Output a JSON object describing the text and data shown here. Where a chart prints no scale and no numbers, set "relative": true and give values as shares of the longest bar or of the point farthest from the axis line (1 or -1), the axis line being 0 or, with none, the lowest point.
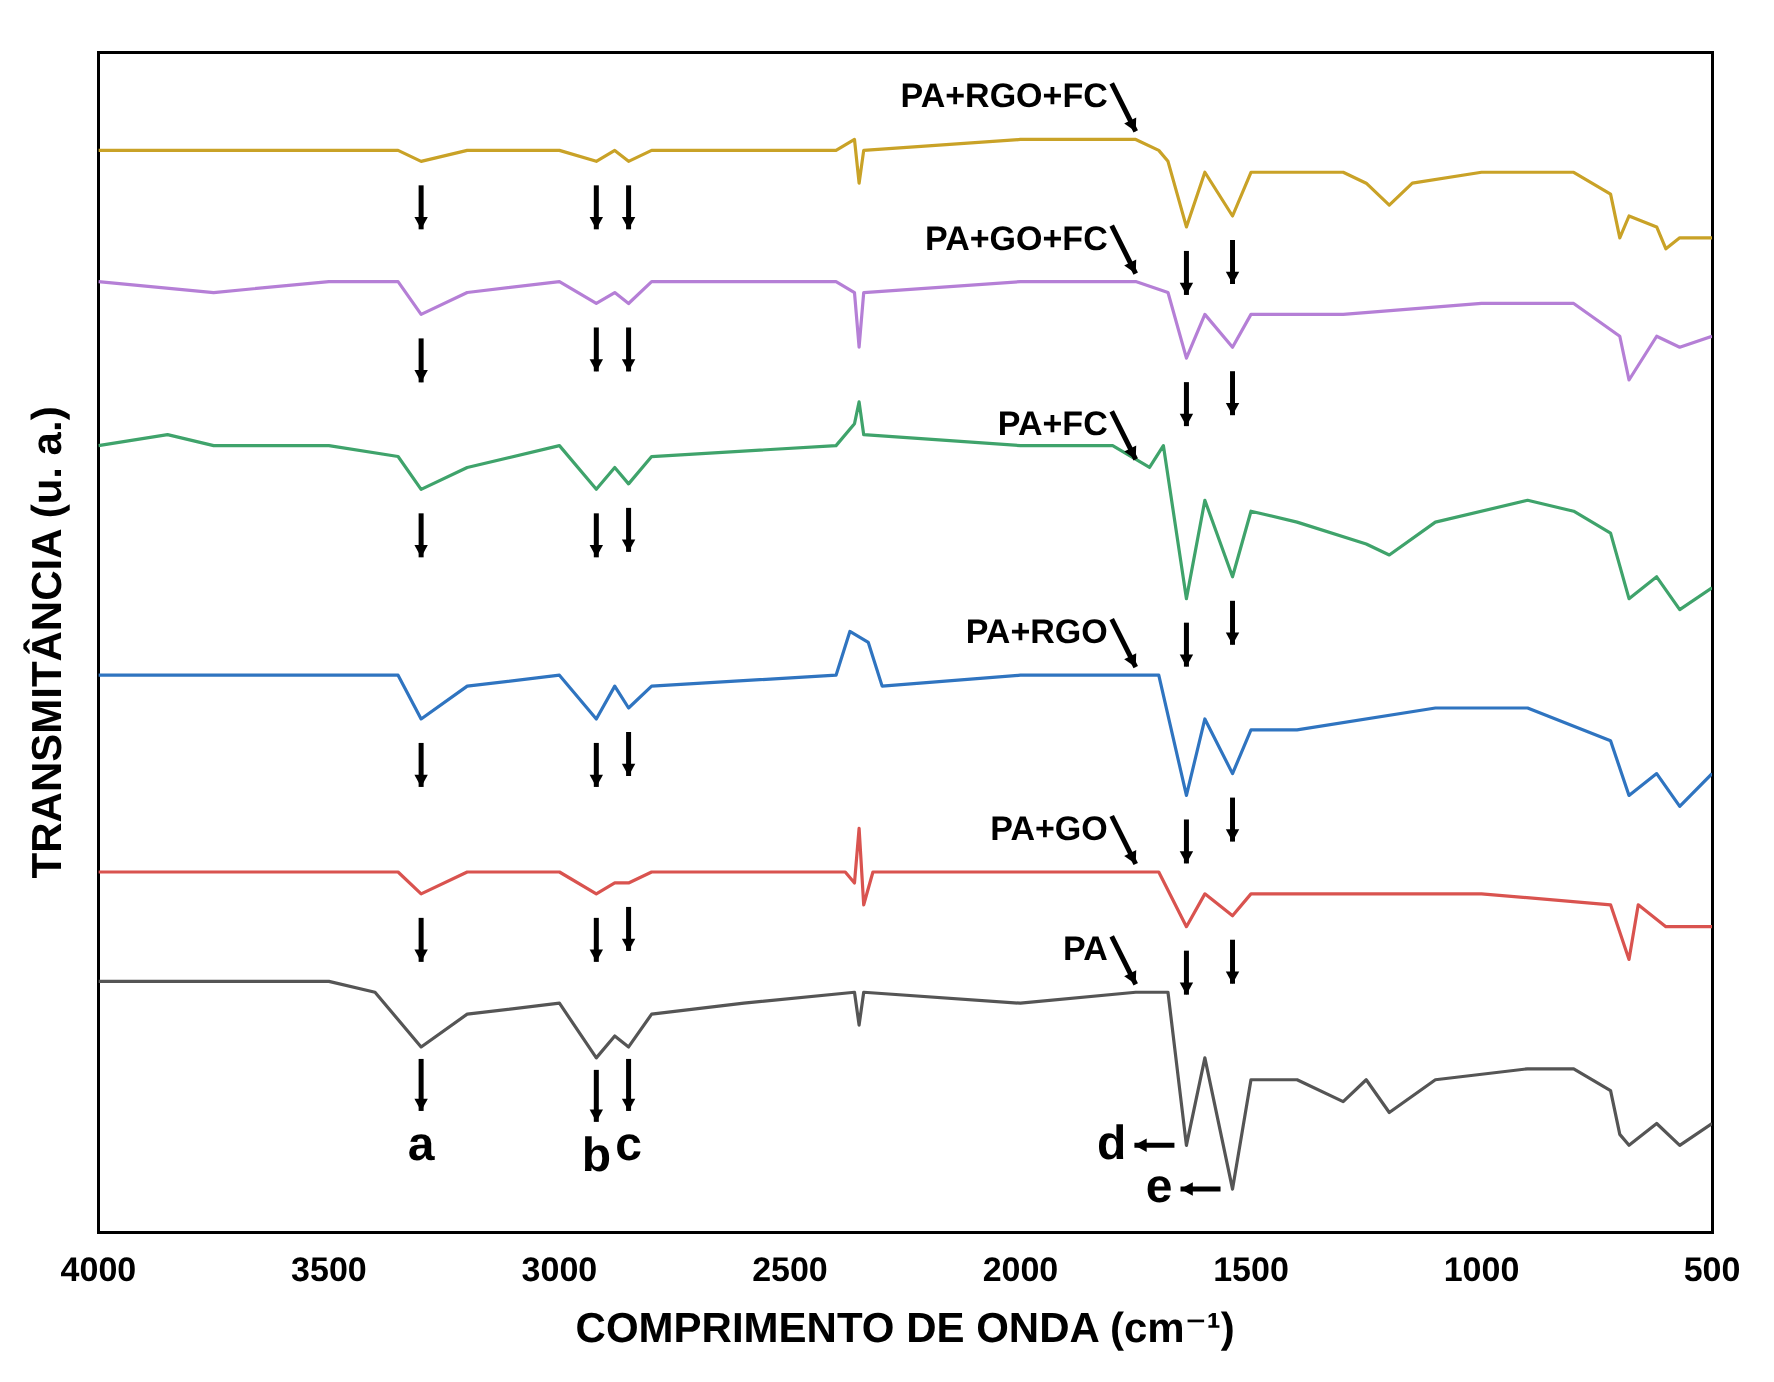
{
  "chart_data": {
    "type": "line",
    "relative": true,
    "xlabel": "COMPRIMENTO DE ONDA (cm⁻¹)",
    "ylabel": "TRANSMITÂNCIA (u. a.)",
    "xlim": [
      4000,
      500
    ],
    "xticks": [
      4000,
      3500,
      3000,
      2500,
      2000,
      1500,
      1000,
      500
    ],
    "legend": false,
    "grid": false,
    "marker": "none",
    "line_style": "solid",
    "series": [
      {
        "name": "PA+RGO+FC",
        "color": "#c9a227",
        "x": [
          4000,
          3750,
          3500,
          3350,
          3300,
          3200,
          3000,
          2920,
          2880,
          2850,
          2800,
          2400,
          2360,
          2350,
          2340,
          2000,
          1750,
          1700,
          1680,
          1640,
          1600,
          1540,
          1500,
          1400,
          1300,
          1250,
          1200,
          1150,
          1000,
          800,
          720,
          700,
          680,
          620,
          600,
          570,
          500
        ],
        "values": [
          0.99,
          0.99,
          0.99,
          0.99,
          0.98,
          0.99,
          0.99,
          0.98,
          0.99,
          0.98,
          0.99,
          0.99,
          1.0,
          0.96,
          0.99,
          1.0,
          1.0,
          0.99,
          0.98,
          0.92,
          0.97,
          0.93,
          0.97,
          0.97,
          0.97,
          0.96,
          0.94,
          0.96,
          0.97,
          0.97,
          0.95,
          0.91,
          0.93,
          0.92,
          0.9,
          0.91,
          0.91
        ]
      },
      {
        "name": "PA+GO+FC",
        "color": "#b57fd6",
        "x": [
          4000,
          3750,
          3500,
          3350,
          3300,
          3200,
          3000,
          2920,
          2880,
          2850,
          2800,
          2400,
          2360,
          2350,
          2340,
          2000,
          1750,
          1680,
          1640,
          1600,
          1540,
          1500,
          1300,
          1000,
          800,
          700,
          680,
          620,
          570,
          500
        ],
        "values": [
          0.87,
          0.86,
          0.87,
          0.87,
          0.84,
          0.86,
          0.87,
          0.85,
          0.86,
          0.85,
          0.87,
          0.87,
          0.86,
          0.81,
          0.86,
          0.87,
          0.87,
          0.86,
          0.8,
          0.84,
          0.81,
          0.84,
          0.84,
          0.85,
          0.85,
          0.82,
          0.78,
          0.82,
          0.81,
          0.82
        ]
      },
      {
        "name": "PA+FC",
        "color": "#3fa36b",
        "x": [
          4000,
          3850,
          3750,
          3500,
          3350,
          3300,
          3200,
          3000,
          2920,
          2880,
          2850,
          2800,
          2400,
          2360,
          2350,
          2340,
          2000,
          1800,
          1720,
          1690,
          1640,
          1600,
          1540,
          1500,
          1400,
          1250,
          1200,
          1100,
          900,
          800,
          720,
          680,
          620,
          570,
          500
        ],
        "values": [
          0.72,
          0.73,
          0.72,
          0.72,
          0.71,
          0.68,
          0.7,
          0.72,
          0.68,
          0.7,
          0.685,
          0.71,
          0.72,
          0.74,
          0.76,
          0.73,
          0.72,
          0.72,
          0.7,
          0.72,
          0.58,
          0.67,
          0.6,
          0.66,
          0.65,
          0.63,
          0.62,
          0.65,
          0.67,
          0.66,
          0.64,
          0.58,
          0.6,
          0.57,
          0.59
        ]
      },
      {
        "name": "PA+RGO",
        "color": "#2f74c0",
        "x": [
          4000,
          3750,
          3500,
          3350,
          3300,
          3200,
          3000,
          2920,
          2880,
          2850,
          2800,
          2400,
          2370,
          2330,
          2300,
          2000,
          1700,
          1640,
          1600,
          1540,
          1500,
          1400,
          1100,
          900,
          720,
          680,
          620,
          570,
          500
        ],
        "values": [
          0.51,
          0.51,
          0.51,
          0.51,
          0.47,
          0.5,
          0.51,
          0.47,
          0.5,
          0.48,
          0.5,
          0.51,
          0.55,
          0.54,
          0.5,
          0.51,
          0.51,
          0.4,
          0.47,
          0.42,
          0.46,
          0.46,
          0.48,
          0.48,
          0.45,
          0.4,
          0.42,
          0.39,
          0.42
        ]
      },
      {
        "name": "PA+GO",
        "color": "#d9534f",
        "x": [
          4000,
          3500,
          3350,
          3300,
          3200,
          3000,
          2920,
          2880,
          2850,
          2800,
          2380,
          2360,
          2350,
          2340,
          2320,
          2000,
          1700,
          1640,
          1600,
          1540,
          1500,
          1000,
          720,
          680,
          660,
          600,
          500
        ],
        "values": [
          0.33,
          0.33,
          0.33,
          0.31,
          0.33,
          0.33,
          0.31,
          0.32,
          0.32,
          0.33,
          0.33,
          0.32,
          0.37,
          0.3,
          0.33,
          0.33,
          0.33,
          0.28,
          0.31,
          0.29,
          0.31,
          0.31,
          0.3,
          0.25,
          0.3,
          0.28,
          0.28
        ]
      },
      {
        "name": "PA",
        "color": "#555555",
        "x": [
          4000,
          3500,
          3400,
          3300,
          3200,
          3000,
          2920,
          2880,
          2850,
          2800,
          2600,
          2360,
          2350,
          2340,
          2000,
          1750,
          1680,
          1640,
          1600,
          1540,
          1500,
          1400,
          1300,
          1250,
          1200,
          1100,
          900,
          800,
          720,
          700,
          680,
          620,
          570,
          500
        ],
        "values": [
          0.23,
          0.23,
          0.22,
          0.17,
          0.2,
          0.21,
          0.16,
          0.18,
          0.17,
          0.2,
          0.21,
          0.22,
          0.19,
          0.22,
          0.21,
          0.22,
          0.22,
          0.08,
          0.16,
          0.04,
          0.14,
          0.14,
          0.12,
          0.14,
          0.11,
          0.14,
          0.15,
          0.15,
          0.13,
          0.09,
          0.08,
          0.1,
          0.08,
          0.1
        ]
      }
    ],
    "annotations": [
      {
        "text": "a",
        "x": 3300,
        "y": 0.17
      },
      {
        "text": "b",
        "x": 2920,
        "y": 0.16
      },
      {
        "text": "c",
        "x": 2850,
        "y": 0.17
      },
      {
        "text": "d",
        "x": 1640,
        "y": 0.08
      },
      {
        "text": "e",
        "x": 1540,
        "y": 0.04
      }
    ]
  }
}
